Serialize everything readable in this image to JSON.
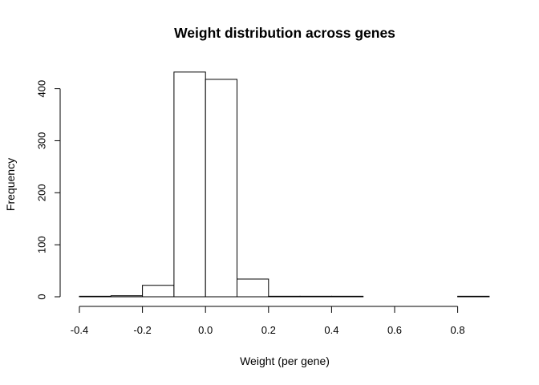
{
  "chart_data": {
    "type": "bar",
    "title": "Weight distribution across genes",
    "xlabel": "Weight (per gene)",
    "ylabel": "Frequency",
    "bin_edges": [
      -0.4,
      -0.3,
      -0.2,
      -0.1,
      0.0,
      0.1,
      0.2,
      0.3,
      0.4,
      0.5,
      0.6,
      0.7,
      0.8,
      0.9
    ],
    "values": [
      1,
      2,
      22,
      432,
      418,
      34,
      1,
      1,
      1,
      0,
      0,
      0,
      1
    ],
    "xlim": [
      -0.4,
      0.9
    ],
    "ylim": [
      0,
      440
    ],
    "x_ticks": [
      -0.4,
      -0.2,
      0.0,
      0.2,
      0.4,
      0.6,
      0.8
    ],
    "x_tick_labels": [
      "-0.4",
      "-0.2",
      "0.0",
      "0.2",
      "0.4",
      "0.6",
      "0.8"
    ],
    "y_ticks": [
      0,
      100,
      200,
      300,
      400
    ],
    "y_tick_labels": [
      "0",
      "100",
      "200",
      "300",
      "400"
    ],
    "grid": false,
    "bar_fill": "#ffffff",
    "bar_stroke": "#000000"
  }
}
